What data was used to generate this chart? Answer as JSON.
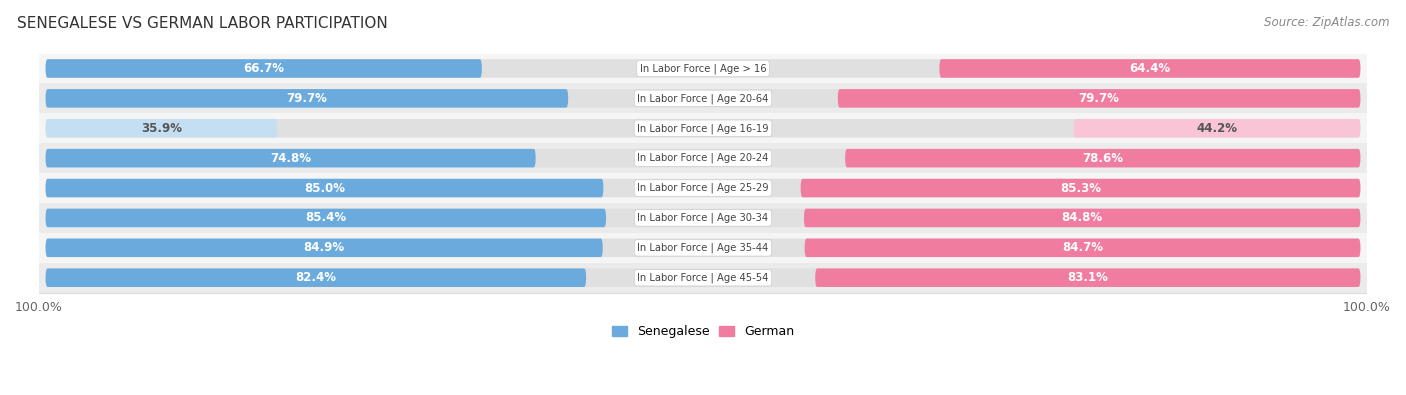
{
  "title": "SENEGALESE VS GERMAN LABOR PARTICIPATION",
  "source": "Source: ZipAtlas.com",
  "categories": [
    "In Labor Force | Age > 16",
    "In Labor Force | Age 20-64",
    "In Labor Force | Age 16-19",
    "In Labor Force | Age 20-24",
    "In Labor Force | Age 25-29",
    "In Labor Force | Age 30-34",
    "In Labor Force | Age 35-44",
    "In Labor Force | Age 45-54"
  ],
  "senegalese": [
    66.7,
    79.7,
    35.9,
    74.8,
    85.0,
    85.4,
    84.9,
    82.4
  ],
  "german": [
    64.4,
    79.7,
    44.2,
    78.6,
    85.3,
    84.8,
    84.7,
    83.1
  ],
  "senegalese_color_full": "#6aaadd",
  "senegalese_color_light": "#c5dff2",
  "german_color_full": "#f07ca0",
  "german_color_light": "#f9c4d5",
  "pill_bg_color": "#e0e0e0",
  "row_bg_alt": "#f2f2f2",
  "label_color_white": "#ffffff",
  "label_color_dark": "#555555",
  "center_label_color": "#444444",
  "max_val": 100.0,
  "bar_height": 0.62,
  "legend_labels": [
    "Senegalese",
    "German"
  ],
  "full_threshold": 50.0
}
